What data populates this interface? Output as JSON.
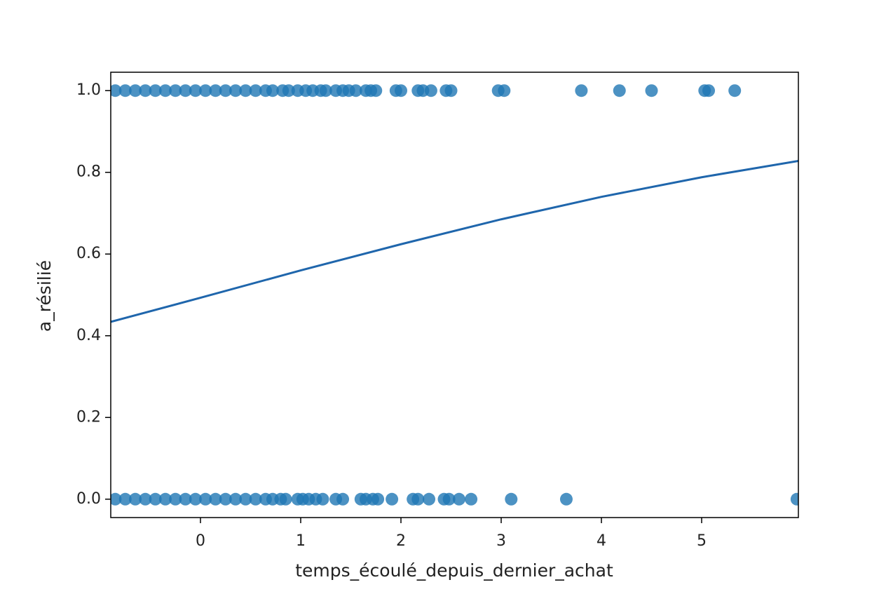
{
  "chart_data": {
    "type": "scatter",
    "xlabel": "temps_écoulé_depuis_dernier_achat",
    "ylabel": "a_résilié",
    "xlim": [
      -0.895,
      5.965
    ],
    "ylim": [
      -0.045,
      1.045
    ],
    "xticks": [
      0,
      1,
      2,
      3,
      4,
      5
    ],
    "yticks": [
      {
        "value": 0,
        "label": "0.0"
      },
      0.2,
      0.4,
      0.6,
      0.8,
      {
        "value": 1,
        "label": "1.0"
      }
    ],
    "series": [
      {
        "color": "#1f77b4",
        "x": [
          -0.85,
          -0.75,
          -0.65,
          -0.55,
          -0.45,
          -0.35,
          -0.25,
          -0.15,
          -0.05,
          0.05,
          0.15,
          0.25,
          0.35,
          0.45,
          0.55,
          0.65,
          0.72,
          0.82,
          0.88,
          0.97,
          1.05,
          1.12,
          1.2,
          1.25,
          1.35,
          1.42,
          1.48,
          1.55,
          1.65,
          1.7,
          1.75,
          1.95,
          2.0,
          2.17,
          2.22,
          2.3,
          2.45,
          2.5,
          2.97,
          3.03,
          3.8,
          4.18,
          4.5,
          5.03,
          5.07,
          5.33
        ],
        "values": [
          1,
          1,
          1,
          1,
          1,
          1,
          1,
          1,
          1,
          1,
          1,
          1,
          1,
          1,
          1,
          1,
          1,
          1,
          1,
          1,
          1,
          1,
          1,
          1,
          1,
          1,
          1,
          1,
          1,
          1,
          1,
          1,
          1,
          1,
          1,
          1,
          1,
          1,
          1,
          1,
          1,
          1,
          1,
          1,
          1,
          1
        ]
      },
      {
        "color": "#1f77b4",
        "x": [
          -0.85,
          -0.75,
          -0.65,
          -0.55,
          -0.45,
          -0.35,
          -0.25,
          -0.15,
          -0.05,
          0.05,
          0.15,
          0.25,
          0.35,
          0.45,
          0.55,
          0.65,
          0.72,
          0.8,
          0.85,
          0.97,
          1.02,
          1.08,
          1.15,
          1.22,
          1.35,
          1.42,
          1.6,
          1.65,
          1.72,
          1.77,
          1.91,
          2.12,
          2.17,
          2.28,
          2.43,
          2.48,
          2.58,
          2.7,
          3.1,
          3.65,
          5.95
        ],
        "values": [
          0,
          0,
          0,
          0,
          0,
          0,
          0,
          0,
          0,
          0,
          0,
          0,
          0,
          0,
          0,
          0,
          0,
          0,
          0,
          0,
          0,
          0,
          0,
          0,
          0,
          0,
          0,
          0,
          0,
          0,
          0,
          0,
          0,
          0,
          0,
          0,
          0,
          0,
          0,
          0,
          0
        ]
      }
    ],
    "curve": {
      "color": "#1f66ac",
      "x": [
        -0.895,
        0,
        1,
        2,
        3,
        4,
        5,
        5.965
      ],
      "values": [
        0.434,
        0.493,
        0.56,
        0.624,
        0.685,
        0.74,
        0.788,
        0.828
      ]
    }
  }
}
